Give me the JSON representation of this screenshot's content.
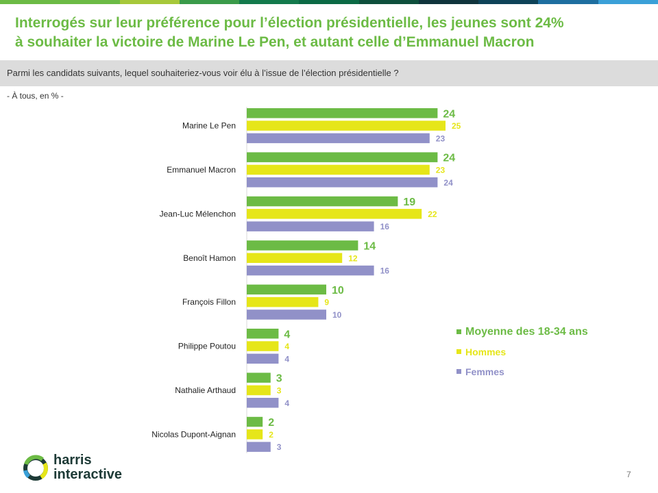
{
  "header": {
    "title_line1": "Interrogés sur leur préférence pour l’élection présidentielle, les jeunes sont 24%",
    "title_line2": "à souhaiter la victoire de Marine Le Pen, et autant celle d’Emmanuel Macron",
    "question": "Parmi les candidats suivants, lequel souhaiteriez-vous voir élu à l’issue de l’élection présidentielle ?",
    "subnote": "- À tous, en % -"
  },
  "colors": {
    "green": "#6cbb45",
    "yellow": "#e6e619",
    "purple": "#9191c8",
    "title": "#6cbb45",
    "strip": [
      "#6cbb45",
      "#6cbb45",
      "#a7c83a",
      "#3a9b4a",
      "#137a4c",
      "#0b6a45",
      "#0e4f3c",
      "#10343c",
      "#0e4358",
      "#1e6fa0",
      "#3aa0d8"
    ]
  },
  "chart_data": {
    "type": "bar",
    "orientation": "horizontal",
    "categories": [
      "Marine Le Pen",
      "Emmanuel Macron",
      "Jean-Luc Mélenchon",
      "Benoît Hamon",
      "François Fillon",
      "Philippe Poutou",
      "Nathalie Arthaud",
      "Nicolas Dupont-Aignan"
    ],
    "series": [
      {
        "name": "Moyenne des 18-34 ans",
        "values": [
          24,
          24,
          19,
          14,
          10,
          4,
          3,
          2
        ]
      },
      {
        "name": "Hommes",
        "values": [
          25,
          23,
          22,
          12,
          9,
          4,
          3,
          2
        ]
      },
      {
        "name": "Femmes",
        "values": [
          23,
          24,
          16,
          16,
          10,
          4,
          4,
          3
        ]
      }
    ],
    "xlim": [
      0,
      25
    ],
    "legend": "bottom-right",
    "grid": false
  },
  "logo": {
    "line1": "harris",
    "line2": "interactive"
  },
  "page_number": "7"
}
